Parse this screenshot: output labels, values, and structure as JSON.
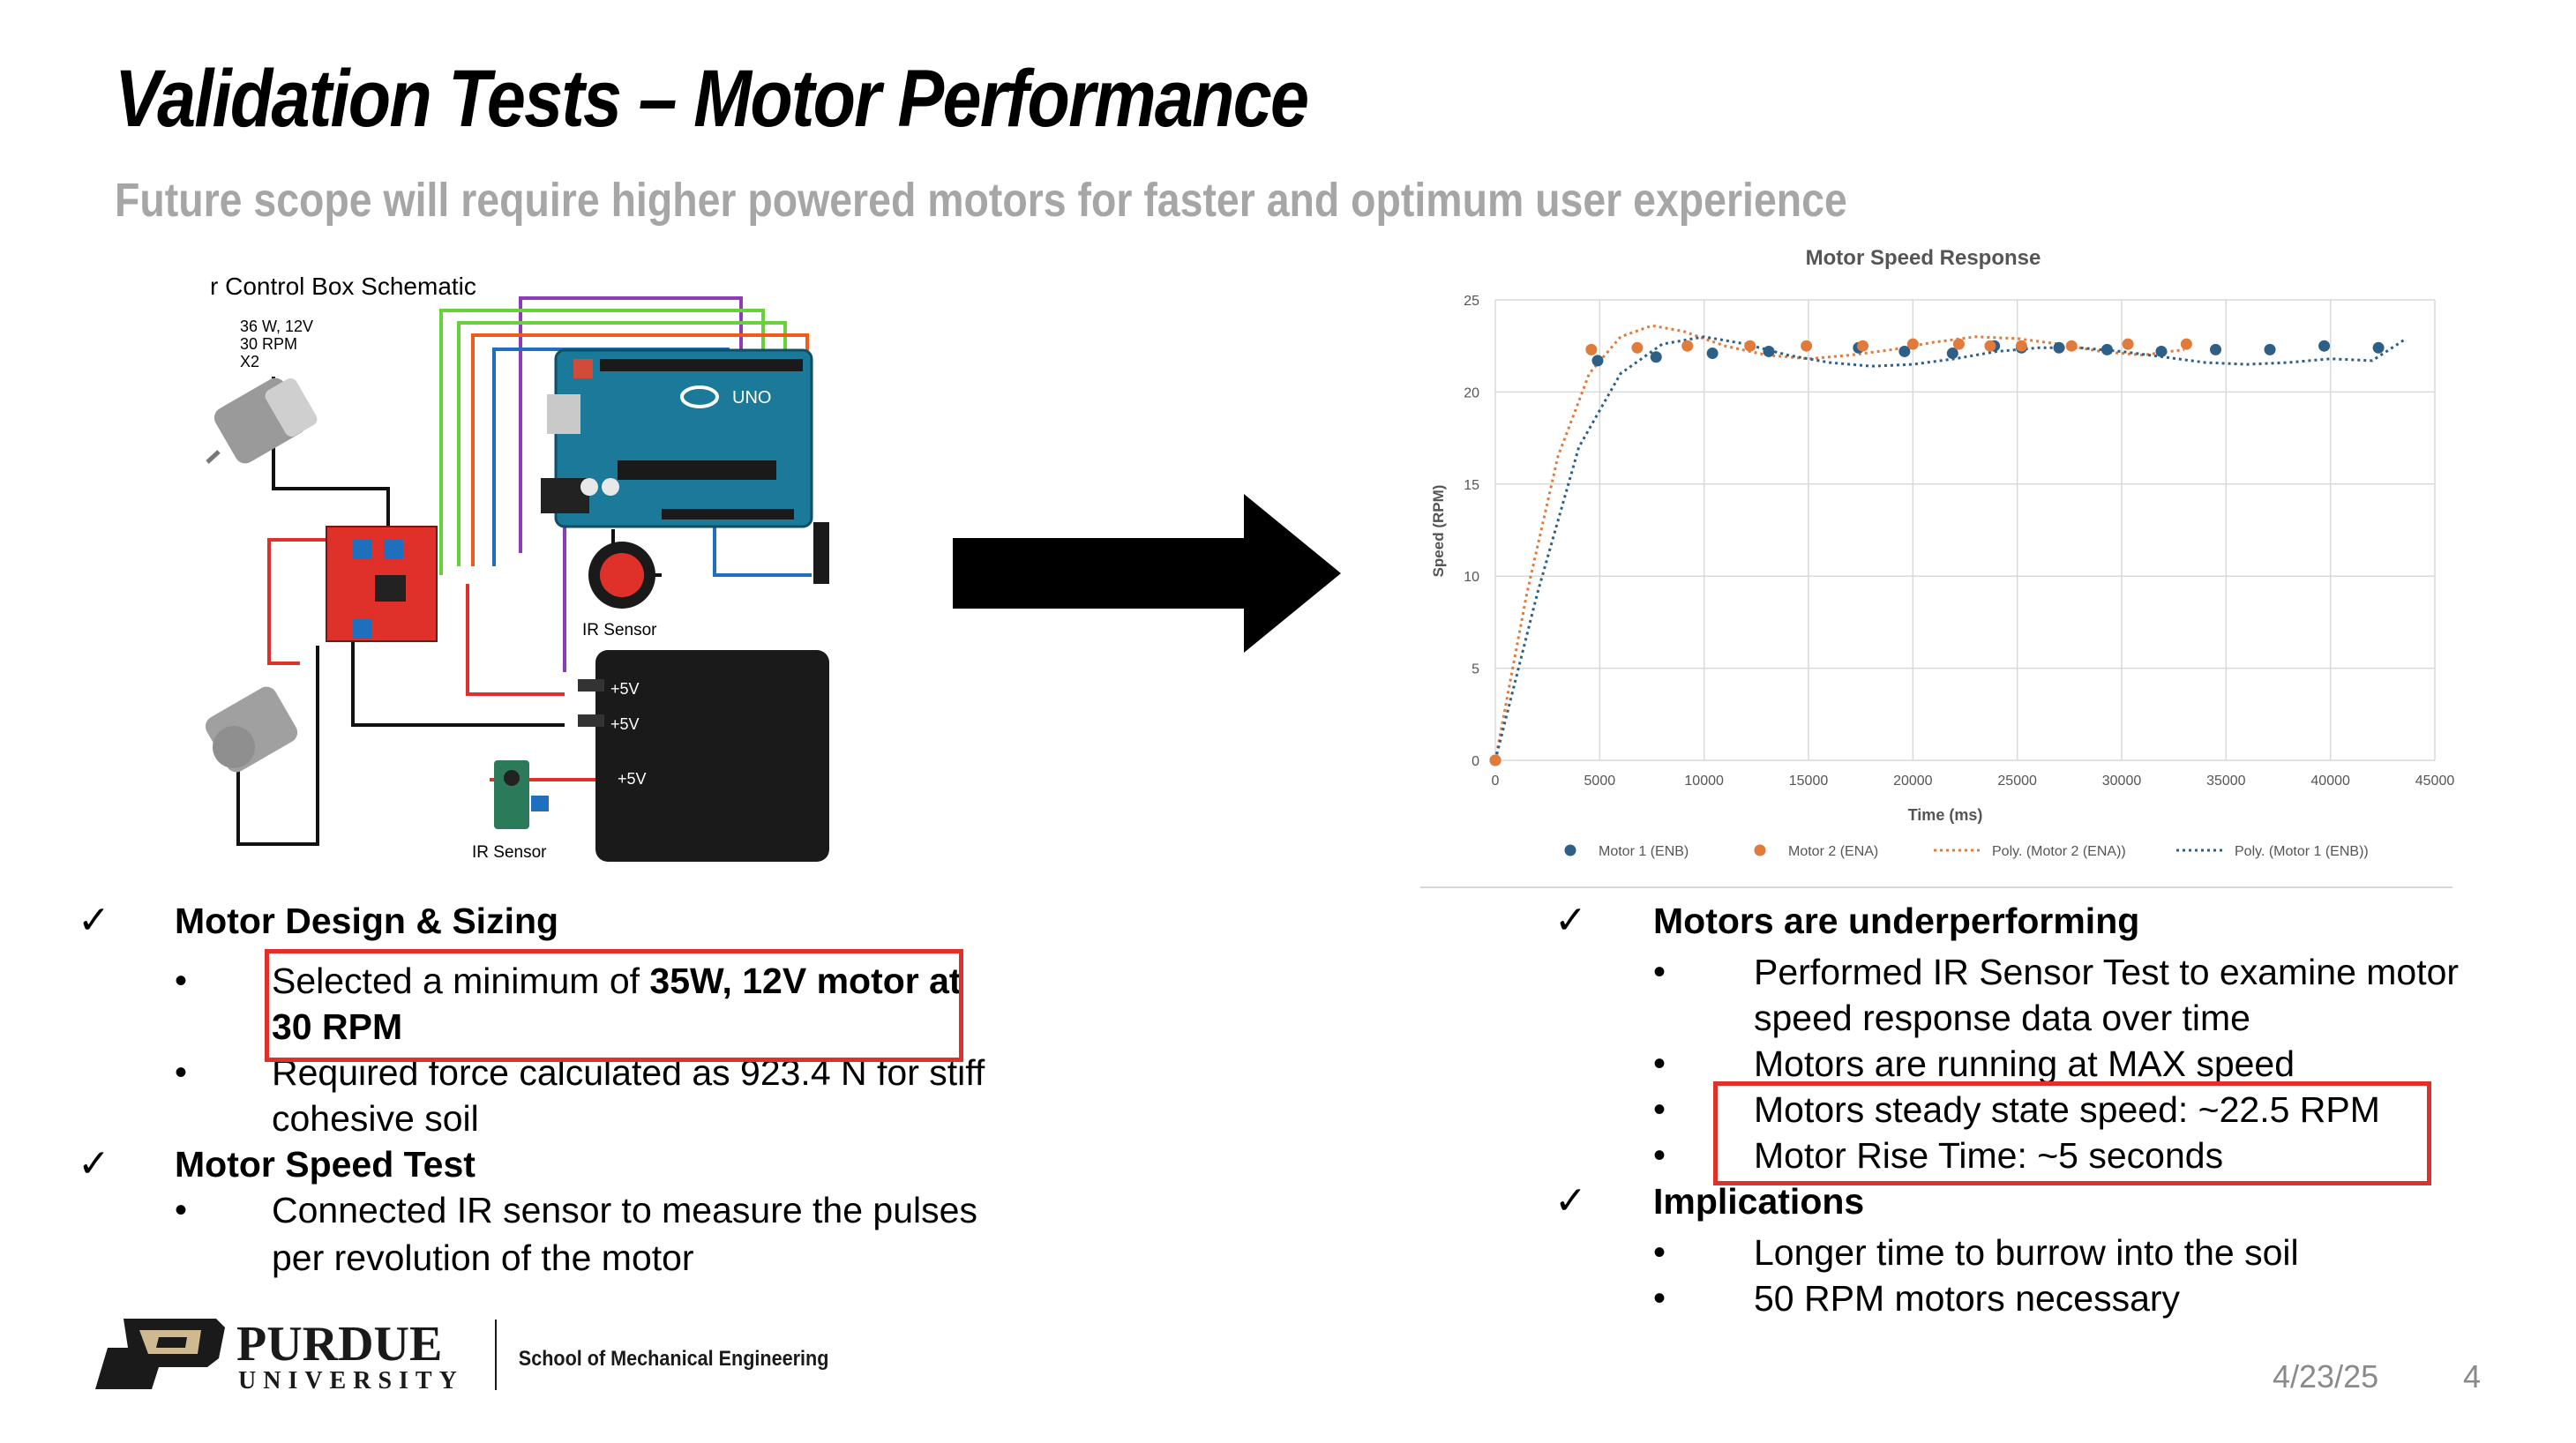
{
  "slide": {
    "title": "Validation Tests – Motor Performance",
    "subtitle": "Future scope will require higher powered motors for faster and optimum user experience",
    "date": "4/23/25",
    "page_number": "4"
  },
  "schematic": {
    "title": "r Control Box Schematic",
    "motor_spec_line1": "36 W, 12V",
    "motor_spec_line2": "30 RPM",
    "motor_spec_line3": "X2",
    "ir_sensor_label_1": "IR Sensor",
    "ir_sensor_label_2": "IR Sensor",
    "battery_labels": [
      "+5V",
      "+5V",
      "+5V"
    ],
    "arduino_label": "UNO",
    "wire_colors": {
      "purple": "#8e3bb8",
      "green": "#66d13a",
      "orange": "#f05a1e",
      "blue": "#1f6fbf",
      "red": "#e0302a",
      "black": "#111111"
    }
  },
  "chart_data": {
    "type": "scatter",
    "title": "Motor Speed Response",
    "xlabel": "Time (ms)",
    "ylabel": "Speed (RPM)",
    "xlim": [
      0,
      45000
    ],
    "ylim": [
      0,
      25
    ],
    "x_ticks": [
      "0",
      "5000",
      "10000",
      "15000",
      "20000",
      "25000",
      "30000",
      "35000",
      "40000",
      "45000"
    ],
    "y_ticks": [
      "0",
      "5",
      "10",
      "15",
      "20",
      "25"
    ],
    "grid": true,
    "legend_position": "bottom",
    "series": [
      {
        "name": "Motor 1 (ENB)",
        "color": "#2e5f86",
        "kind": "points",
        "points": [
          [
            0,
            0
          ],
          [
            4900,
            21.7
          ],
          [
            7700,
            21.9
          ],
          [
            10400,
            22.1
          ],
          [
            13100,
            22.2
          ],
          [
            17400,
            22.4
          ],
          [
            19600,
            22.2
          ],
          [
            21900,
            22.1
          ],
          [
            23900,
            22.5
          ],
          [
            25200,
            22.4
          ],
          [
            27000,
            22.4
          ],
          [
            29300,
            22.3
          ],
          [
            31900,
            22.2
          ],
          [
            34500,
            22.3
          ],
          [
            37100,
            22.3
          ],
          [
            39700,
            22.5
          ],
          [
            42300,
            22.4
          ]
        ]
      },
      {
        "name": "Motor 2 (ENA)",
        "color": "#e07b3c",
        "kind": "points",
        "points": [
          [
            0,
            0
          ],
          [
            4600,
            22.3
          ],
          [
            6800,
            22.4
          ],
          [
            9200,
            22.5
          ],
          [
            12200,
            22.5
          ],
          [
            14900,
            22.5
          ],
          [
            17600,
            22.5
          ],
          [
            20000,
            22.6
          ],
          [
            22200,
            22.6
          ],
          [
            23700,
            22.5
          ],
          [
            25200,
            22.5
          ],
          [
            27600,
            22.5
          ],
          [
            30300,
            22.6
          ],
          [
            33100,
            22.6
          ]
        ]
      },
      {
        "name": "Poly. (Motor 2 (ENA))",
        "color": "#e07b3c",
        "kind": "trend",
        "points": [
          [
            0,
            0
          ],
          [
            1500,
            9
          ],
          [
            3000,
            16.5
          ],
          [
            4500,
            21
          ],
          [
            6000,
            23
          ],
          [
            7500,
            23.6
          ],
          [
            9000,
            23.3
          ],
          [
            11000,
            22.5
          ],
          [
            13000,
            22
          ],
          [
            15000,
            21.8
          ],
          [
            17000,
            22
          ],
          [
            19000,
            22.3
          ],
          [
            21000,
            22.7
          ],
          [
            23000,
            23
          ],
          [
            25000,
            22.9
          ],
          [
            27000,
            22.6
          ],
          [
            29000,
            22.2
          ],
          [
            31000,
            22
          ],
          [
            33000,
            22.3
          ]
        ]
      },
      {
        "name": "Poly. (Motor 1 (ENB))",
        "color": "#2e5f86",
        "kind": "trend",
        "points": [
          [
            0,
            0
          ],
          [
            2000,
            9
          ],
          [
            4000,
            17
          ],
          [
            6000,
            21
          ],
          [
            8000,
            22.6
          ],
          [
            10000,
            23
          ],
          [
            12000,
            22.6
          ],
          [
            14000,
            22
          ],
          [
            16000,
            21.6
          ],
          [
            18000,
            21.4
          ],
          [
            20000,
            21.5
          ],
          [
            22000,
            21.8
          ],
          [
            24000,
            22.2
          ],
          [
            26000,
            22.4
          ],
          [
            28000,
            22.4
          ],
          [
            30000,
            22.2
          ],
          [
            32000,
            21.9
          ],
          [
            34000,
            21.6
          ],
          [
            36000,
            21.5
          ],
          [
            38000,
            21.6
          ],
          [
            40000,
            21.8
          ],
          [
            42000,
            21.7
          ],
          [
            43500,
            22.8
          ]
        ]
      }
    ]
  },
  "left_bullets": {
    "h1": "Motor Design & Sizing",
    "b1_prefix": "Selected a minimum of ",
    "b1_bold": "35W, 12V motor at",
    "b1_line2": "30 RPM",
    "b2_line1": "Required force calculated as 923.4 N for stiff",
    "b2_line2": "cohesive soil",
    "h2": "Motor Speed Test",
    "b3_line1": "Connected IR sensor to measure the pulses",
    "b3_line2": "per revolution of the motor"
  },
  "right_bullets": {
    "h1": "Motors are underperforming",
    "b1_line1": "Performed IR Sensor Test to examine motor",
    "b1_line2": "speed response data over time",
    "b2": "Motors are running at MAX speed",
    "b3": "Motors steady state speed: ~22.5 RPM",
    "b4": "Motor Rise Time: ~5 seconds",
    "h2": "Implications",
    "b5": "Longer time to burrow into the soil",
    "b6": "50 RPM motors necessary"
  },
  "symbols": {
    "check": "✓",
    "bullet": "•"
  },
  "footer": {
    "university_name": "PURDUE",
    "university_sub": "UNIVERSITY",
    "school": "School of Mechanical Engineering",
    "logo_color": "#1a1a1a",
    "accent_color": "#cfb991"
  }
}
